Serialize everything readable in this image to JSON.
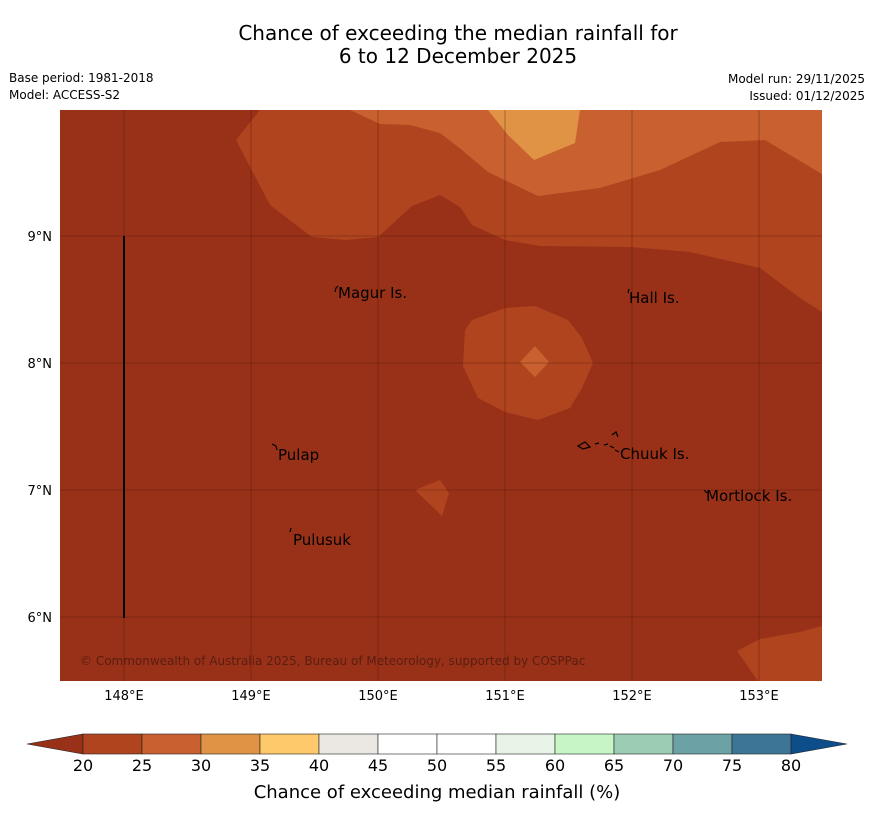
{
  "title_line1": "Chance of exceeding the median rainfall for",
  "title_line2": "6 to 12 December 2025",
  "base_period": "Base period: 1981-2018",
  "model": "Model: ACCESS-S2",
  "model_run": "Model run: 29/11/2025",
  "issued": "Issued: 01/12/2025",
  "map": {
    "lat_labels": [
      "9°N",
      "8°N",
      "7°N",
      "6°N"
    ],
    "lon_labels": [
      "148°E",
      "149°E",
      "150°E",
      "151°E",
      "152°E",
      "153°E"
    ],
    "places": [
      "Magur Is.",
      "Hall Is.",
      "Pulap",
      "Chuuk Is.",
      "Mortlock Is.",
      "Pulusuk"
    ],
    "copyright": "© Commonwealth of Australia 2025, Bureau of Meteorology, supported by COSPPac"
  },
  "colorbar": {
    "ticks": [
      "20",
      "25",
      "30",
      "35",
      "40",
      "45",
      "50",
      "55",
      "60",
      "65",
      "70",
      "75",
      "80"
    ],
    "colors": [
      "#b0441f",
      "#c8612f",
      "#e09345",
      "#fec96a",
      "#ebe8e3",
      "#ffffff",
      "#ffffff",
      "#e8f4e8",
      "#c7f5c5",
      "#9acdb3",
      "#6ca2a5",
      "#3d7596"
    ],
    "under_color": "#993119",
    "over_color": "#0c4d8a",
    "label": "Chance of exceeding median rainfall (%)"
  },
  "colors": {
    "band_lt20": "#993119",
    "band_20_25": "#b0441f",
    "band_25_30": "#c8612f",
    "band_30_35": "#e09345"
  }
}
